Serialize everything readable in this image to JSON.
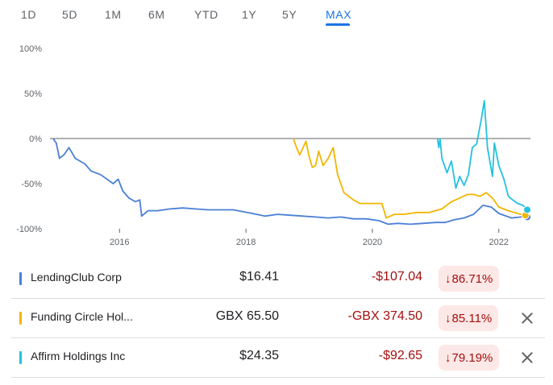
{
  "tabs": [
    {
      "label": "1D"
    },
    {
      "label": "5D"
    },
    {
      "label": "1M"
    },
    {
      "label": "6M"
    },
    {
      "label": "YTD"
    },
    {
      "label": "1Y"
    },
    {
      "label": "5Y"
    },
    {
      "label": "MAX",
      "active": true
    }
  ],
  "chart_data": {
    "type": "line",
    "y_ticks": [
      "100%",
      "50%",
      "0%",
      "-50%",
      "-100%"
    ],
    "x_ticks": [
      "2016",
      "2018",
      "2020",
      "2022"
    ],
    "ylim": [
      -100,
      100
    ],
    "xlim": [
      2014.9,
      2022.5
    ],
    "baseline": 0,
    "series": [
      {
        "name": "LendingClub Corp",
        "color": "#4a7fd6",
        "points": [
          [
            2014.95,
            0
          ],
          [
            2015.0,
            -5
          ],
          [
            2015.05,
            -22
          ],
          [
            2015.12,
            -18
          ],
          [
            2015.2,
            -10
          ],
          [
            2015.3,
            -22
          ],
          [
            2015.45,
            -28
          ],
          [
            2015.55,
            -36
          ],
          [
            2015.7,
            -40
          ],
          [
            2015.8,
            -45
          ],
          [
            2015.9,
            -50
          ],
          [
            2015.98,
            -45
          ],
          [
            2016.05,
            -58
          ],
          [
            2016.15,
            -66
          ],
          [
            2016.25,
            -70
          ],
          [
            2016.32,
            -68
          ],
          [
            2016.35,
            -86
          ],
          [
            2016.45,
            -80
          ],
          [
            2016.6,
            -80
          ],
          [
            2016.8,
            -78
          ],
          [
            2017.0,
            -77
          ],
          [
            2017.2,
            -78
          ],
          [
            2017.4,
            -79
          ],
          [
            2017.6,
            -79
          ],
          [
            2017.8,
            -79
          ],
          [
            2017.95,
            -81
          ],
          [
            2018.1,
            -83
          ],
          [
            2018.3,
            -86
          ],
          [
            2018.5,
            -84
          ],
          [
            2018.7,
            -85
          ],
          [
            2018.9,
            -86
          ],
          [
            2019.1,
            -87
          ],
          [
            2019.3,
            -88
          ],
          [
            2019.5,
            -87
          ],
          [
            2019.7,
            -89
          ],
          [
            2019.9,
            -89
          ],
          [
            2020.1,
            -91
          ],
          [
            2020.25,
            -95
          ],
          [
            2020.4,
            -94
          ],
          [
            2020.6,
            -95
          ],
          [
            2020.8,
            -94
          ],
          [
            2021.0,
            -93
          ],
          [
            2021.15,
            -93
          ],
          [
            2021.3,
            -90
          ],
          [
            2021.45,
            -88
          ],
          [
            2021.6,
            -84
          ],
          [
            2021.75,
            -74
          ],
          [
            2021.88,
            -76
          ],
          [
            2022.0,
            -83
          ],
          [
            2022.2,
            -88
          ],
          [
            2022.35,
            -87
          ],
          [
            2022.45,
            -87
          ]
        ]
      },
      {
        "name": "Funding Circle Hol...",
        "color": "#f2b600",
        "points": [
          [
            2018.75,
            0
          ],
          [
            2018.8,
            -10
          ],
          [
            2018.85,
            -18
          ],
          [
            2018.95,
            -3
          ],
          [
            2019.0,
            -20
          ],
          [
            2019.05,
            -32
          ],
          [
            2019.1,
            -30
          ],
          [
            2019.15,
            -14
          ],
          [
            2019.22,
            -30
          ],
          [
            2019.3,
            -22
          ],
          [
            2019.38,
            -10
          ],
          [
            2019.45,
            -40
          ],
          [
            2019.55,
            -60
          ],
          [
            2019.7,
            -68
          ],
          [
            2019.8,
            -72
          ],
          [
            2020.0,
            -72
          ],
          [
            2020.15,
            -72
          ],
          [
            2020.22,
            -88
          ],
          [
            2020.35,
            -84
          ],
          [
            2020.5,
            -84
          ],
          [
            2020.7,
            -82
          ],
          [
            2020.9,
            -82
          ],
          [
            2021.1,
            -78
          ],
          [
            2021.25,
            -70
          ],
          [
            2021.38,
            -66
          ],
          [
            2021.5,
            -62
          ],
          [
            2021.6,
            -62
          ],
          [
            2021.7,
            -64
          ],
          [
            2021.8,
            -60
          ],
          [
            2021.9,
            -66
          ],
          [
            2022.0,
            -76
          ],
          [
            2022.15,
            -80
          ],
          [
            2022.3,
            -83
          ],
          [
            2022.42,
            -85
          ]
        ]
      },
      {
        "name": "Affirm Holdings Inc",
        "color": "#24c1e0",
        "points": [
          [
            2021.03,
            0
          ],
          [
            2021.05,
            -10
          ],
          [
            2021.07,
            0
          ],
          [
            2021.1,
            -22
          ],
          [
            2021.18,
            -38
          ],
          [
            2021.25,
            -25
          ],
          [
            2021.32,
            -55
          ],
          [
            2021.38,
            -42
          ],
          [
            2021.45,
            -52
          ],
          [
            2021.52,
            -40
          ],
          [
            2021.58,
            -10
          ],
          [
            2021.65,
            -6
          ],
          [
            2021.72,
            20
          ],
          [
            2021.77,
            42
          ],
          [
            2021.82,
            -10
          ],
          [
            2021.9,
            -42
          ],
          [
            2021.93,
            -5
          ],
          [
            2022.0,
            -30
          ],
          [
            2022.08,
            -45
          ],
          [
            2022.15,
            -64
          ],
          [
            2022.22,
            -68
          ],
          [
            2022.3,
            -72
          ],
          [
            2022.38,
            -74
          ],
          [
            2022.45,
            -79
          ]
        ]
      }
    ]
  },
  "rows": [
    {
      "name": "LendingClub Corp",
      "price": "$16.41",
      "change": "-$107.04",
      "pct": "86.71%",
      "removable": false
    },
    {
      "name": "Funding Circle Hol...",
      "price": "GBX 65.50",
      "change": "-GBX 374.50",
      "pct": "85.11%",
      "removable": true
    },
    {
      "name": "Affirm Holdings Inc",
      "price": "$24.35",
      "change": "-$92.65",
      "pct": "79.19%",
      "removable": true
    }
  ]
}
